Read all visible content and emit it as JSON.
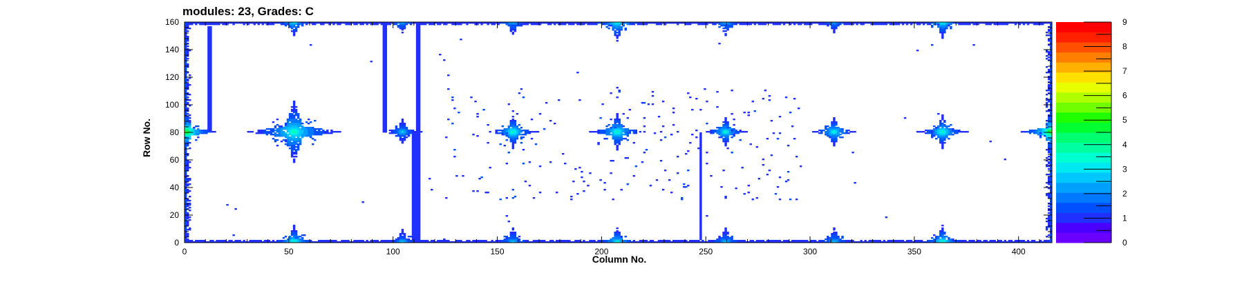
{
  "chart_data": {
    "type": "heatmap",
    "title": "modules: 23, Grades: C",
    "xlabel": "Column No.",
    "ylabel": "Row No.",
    "xlim": [
      0,
      416
    ],
    "ylim": [
      0,
      160
    ],
    "x_ticks": [
      0,
      50,
      100,
      150,
      200,
      250,
      300,
      350,
      400
    ],
    "y_ticks": [
      0,
      20,
      40,
      60,
      80,
      100,
      120,
      140,
      160
    ],
    "z_range": [
      0,
      9
    ],
    "z_ticks": [
      0,
      1,
      2,
      3,
      4,
      5,
      6,
      7,
      8,
      9
    ],
    "palette": [
      "#6a00ff",
      "#4b00ff",
      "#2030ff",
      "#0050ff",
      "#0078ff",
      "#00a0ff",
      "#00c8ff",
      "#00e8f0",
      "#00ffd0",
      "#00ffa0",
      "#00ff70",
      "#00ff30",
      "#20ff00",
      "#70ff00",
      "#b0ff00",
      "#e8ff00",
      "#ffe000",
      "#ffb000",
      "#ff8000",
      "#ff5000",
      "#ff2000",
      "#ff0000"
    ],
    "grid": false,
    "hotspots": [
      {
        "x": 52,
        "y": 80,
        "level": 3,
        "arm": 22
      },
      {
        "x": 157,
        "y": 80,
        "level": 3,
        "arm": 12
      },
      {
        "x": 207,
        "y": 80,
        "level": 3,
        "arm": 13
      },
      {
        "x": 259,
        "y": 80,
        "level": 3,
        "arm": 10
      },
      {
        "x": 311,
        "y": 80,
        "level": 3,
        "arm": 10
      },
      {
        "x": 363,
        "y": 80,
        "level": 3,
        "arm": 12
      },
      {
        "x": 104,
        "y": 80,
        "level": 2,
        "arm": 9
      },
      {
        "x": 52,
        "y": 160,
        "level": 3,
        "arm": 10
      },
      {
        "x": 104,
        "y": 160,
        "level": 2,
        "arm": 8
      },
      {
        "x": 157,
        "y": 160,
        "level": 2,
        "arm": 10
      },
      {
        "x": 207,
        "y": 160,
        "level": 3,
        "arm": 14
      },
      {
        "x": 259,
        "y": 160,
        "level": 2,
        "arm": 10
      },
      {
        "x": 311,
        "y": 160,
        "level": 2,
        "arm": 8
      },
      {
        "x": 363,
        "y": 160,
        "level": 3,
        "arm": 12
      },
      {
        "x": 52,
        "y": 0,
        "level": 3,
        "arm": 12
      },
      {
        "x": 104,
        "y": 0,
        "level": 2,
        "arm": 9
      },
      {
        "x": 157,
        "y": 0,
        "level": 2,
        "arm": 10
      },
      {
        "x": 207,
        "y": 0,
        "level": 3,
        "arm": 10
      },
      {
        "x": 259,
        "y": 0,
        "level": 2,
        "arm": 10
      },
      {
        "x": 311,
        "y": 0,
        "level": 2,
        "arm": 10
      },
      {
        "x": 363,
        "y": 0,
        "level": 3,
        "arm": 12
      },
      {
        "x": 0,
        "y": 80,
        "level": 5,
        "arm": 14
      },
      {
        "x": 415,
        "y": 80,
        "level": 5,
        "arm": 14
      }
    ],
    "lines": [
      {
        "x": 11,
        "y0": 80,
        "y1": 157,
        "level": 1
      },
      {
        "x": 12,
        "y0": 80,
        "y1": 157,
        "level": 1
      },
      {
        "x": 95,
        "y0": 80,
        "y1": 160,
        "level": 1
      },
      {
        "x": 96,
        "y0": 80,
        "y1": 160,
        "level": 1
      },
      {
        "x": 109,
        "y0": 2,
        "y1": 80,
        "level": 1
      },
      {
        "x": 110,
        "y0": 2,
        "y1": 80,
        "level": 1
      },
      {
        "x": 111,
        "y0": 2,
        "y1": 160,
        "level": 1
      },
      {
        "x": 112,
        "y0": 2,
        "y1": 160,
        "level": 1
      },
      {
        "x": 247,
        "y0": 2,
        "y1": 80,
        "level": 1
      }
    ]
  }
}
